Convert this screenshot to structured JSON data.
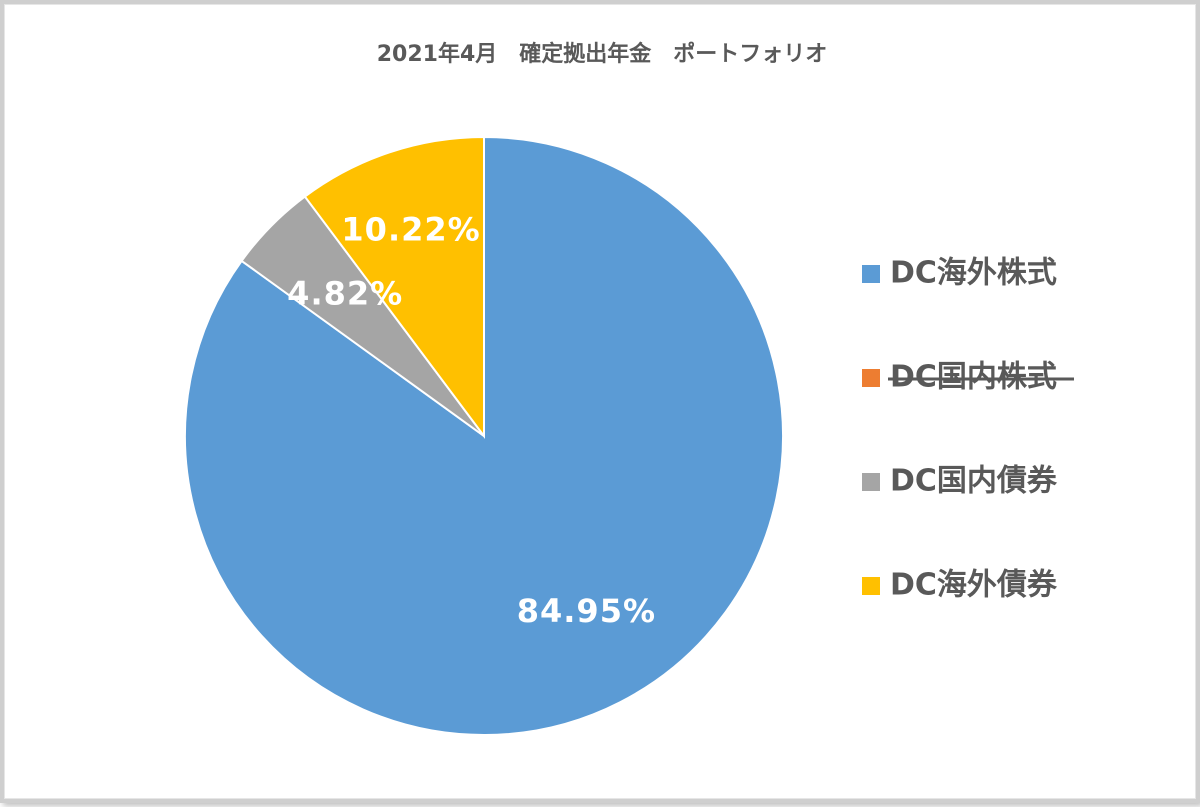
{
  "chart_data": {
    "type": "pie",
    "title": "2021年4月　確定拠出年金　ポートフォリオ",
    "legend_position": "right",
    "series": [
      {
        "name": "DC海外株式",
        "value": 84.95,
        "label": "84.95%",
        "color": "#5B9BD5",
        "struck": false
      },
      {
        "name": "DC国内株式",
        "value": 0,
        "label": "",
        "color": "#ED7D31",
        "struck": true
      },
      {
        "name": "DC国内債券",
        "value": 4.82,
        "label": "4.82%",
        "color": "#A5A5A5",
        "struck": false
      },
      {
        "name": "DC海外債券",
        "value": 10.22,
        "label": "10.22%",
        "color": "#FFC000",
        "struck": false
      }
    ]
  }
}
